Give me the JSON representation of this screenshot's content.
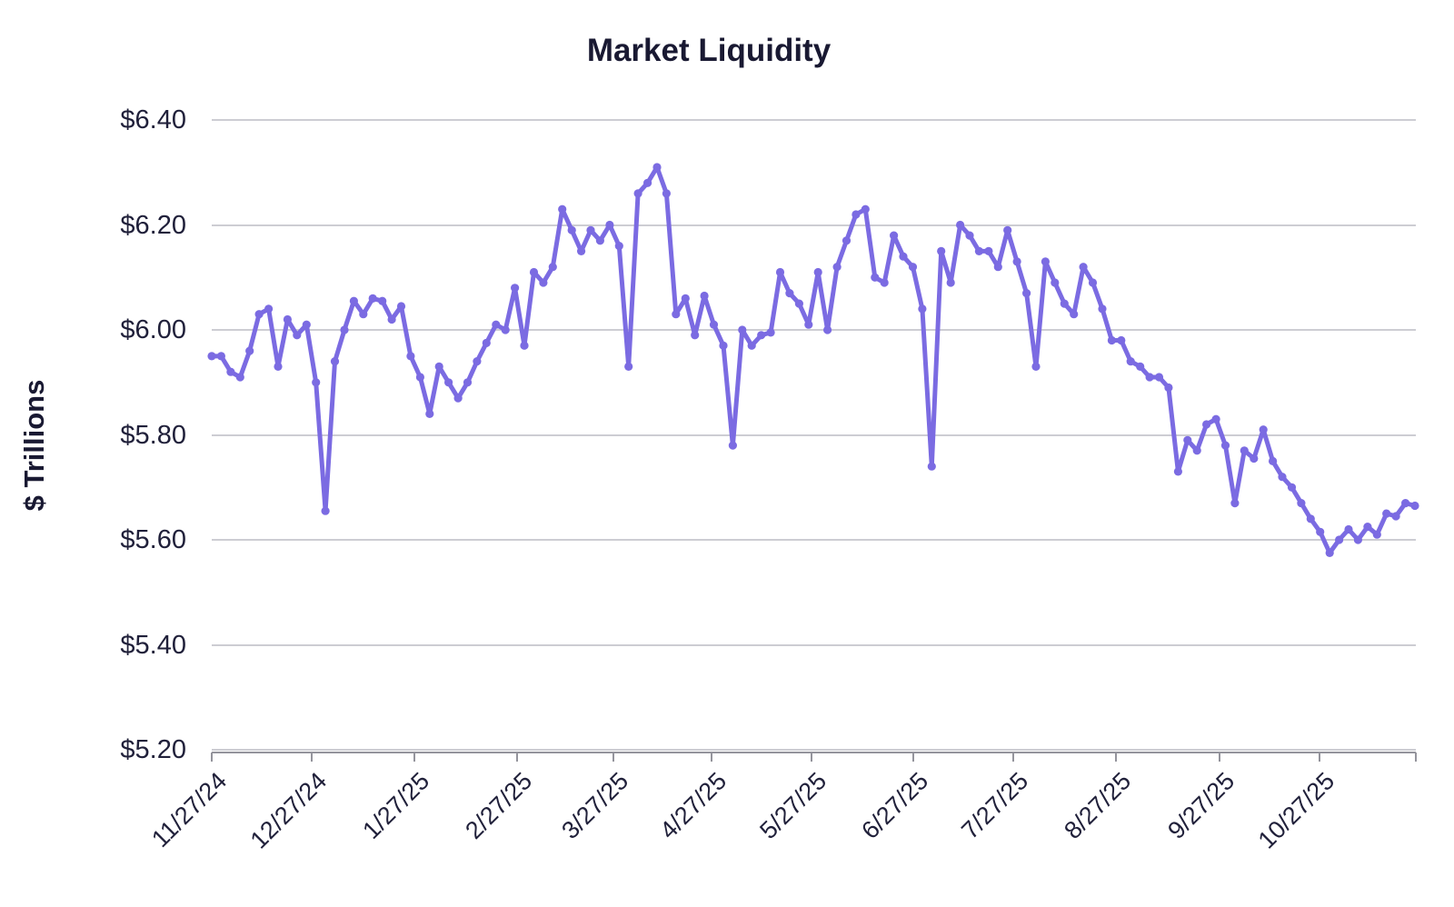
{
  "chart_data": {
    "type": "line",
    "title": "Market Liquidity",
    "ylabel": "$ Trillions",
    "ylim": [
      5.2,
      6.4
    ],
    "grid": "horizontal",
    "legend_position": "none",
    "y_tick_labels": [
      "$6.40",
      "$6.20",
      "$6.00",
      "$5.80",
      "$5.60",
      "$5.40",
      "$5.20"
    ],
    "y_tick_values": [
      6.4,
      6.2,
      6.0,
      5.8,
      5.6,
      5.4,
      5.2
    ],
    "x_tick_labels": [
      "11/27/24",
      "12/27/24",
      "1/27/25",
      "2/27/25",
      "3/27/25",
      "4/27/25",
      "5/27/25",
      "6/27/25",
      "7/27/25",
      "8/27/25",
      "9/27/25",
      "10/27/25"
    ],
    "series": [
      {
        "name": "Market Liquidity",
        "color": "#7b6be2",
        "marker": "circle",
        "values": [
          5.95,
          5.95,
          5.92,
          5.91,
          5.96,
          6.03,
          6.04,
          5.93,
          6.02,
          5.99,
          6.01,
          5.9,
          5.655,
          5.94,
          6.0,
          6.055,
          6.03,
          6.06,
          6.055,
          6.02,
          6.045,
          5.95,
          5.91,
          5.84,
          5.93,
          5.9,
          5.87,
          5.9,
          5.94,
          5.975,
          6.01,
          6.0,
          6.08,
          5.97,
          6.11,
          6.09,
          6.12,
          6.23,
          6.19,
          6.15,
          6.19,
          6.17,
          6.2,
          6.16,
          5.93,
          6.26,
          6.28,
          6.31,
          6.26,
          6.03,
          6.06,
          5.99,
          6.065,
          6.01,
          5.97,
          5.78,
          6.0,
          5.97,
          5.99,
          5.995,
          6.11,
          6.07,
          6.05,
          6.01,
          6.11,
          6.0,
          6.12,
          6.17,
          6.22,
          6.23,
          6.1,
          6.09,
          6.18,
          6.14,
          6.12,
          6.04,
          5.74,
          6.15,
          6.09,
          6.2,
          6.18,
          6.15,
          6.15,
          6.12,
          6.19,
          6.13,
          6.07,
          5.93,
          6.13,
          6.09,
          6.05,
          6.03,
          6.12,
          6.09,
          6.04,
          5.98,
          5.98,
          5.94,
          5.93,
          5.91,
          5.91,
          5.89,
          5.73,
          5.79,
          5.77,
          5.82,
          5.83,
          5.78,
          5.67,
          5.77,
          5.755,
          5.81,
          5.75,
          5.72,
          5.7,
          5.67,
          5.64,
          5.615,
          5.575,
          5.6,
          5.62,
          5.6,
          5.625,
          5.61,
          5.65,
          5.645,
          5.67,
          5.665
        ]
      }
    ]
  }
}
